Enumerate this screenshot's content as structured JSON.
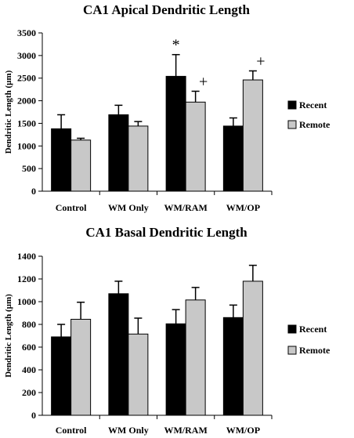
{
  "chart_data": [
    {
      "type": "bar",
      "title": "CA1 Apical Dendritic Length",
      "ylabel": "Dendritic Length (µm)",
      "xlabel": "",
      "ylim": [
        0,
        3500
      ],
      "yticks": [
        0,
        500,
        1000,
        1500,
        2000,
        2500,
        3000,
        3500
      ],
      "categories": [
        "Control",
        "WM Only",
        "WM/RAM",
        "WM/OP"
      ],
      "series": [
        {
          "name": "Recent",
          "color": "#000000",
          "values": [
            1380,
            1690,
            2540,
            1440
          ],
          "errors": [
            310,
            210,
            480,
            180
          ]
        },
        {
          "name": "Remote",
          "color": "#c8c8c8",
          "values": [
            1130,
            1440,
            1970,
            2460
          ],
          "errors": [
            40,
            100,
            240,
            200
          ]
        }
      ],
      "annotations": [
        {
          "category": "WM/RAM",
          "series": "Recent",
          "symbol": "*"
        },
        {
          "category": "WM/RAM",
          "series": "Remote",
          "symbol": "+"
        },
        {
          "category": "WM/OP",
          "series": "Remote",
          "symbol": "+"
        }
      ],
      "legend": "right",
      "grid": false
    },
    {
      "type": "bar",
      "title": "CA1 Basal Dendritic Length",
      "ylabel": "Dendritic Length (µm)",
      "xlabel": "",
      "ylim": [
        0,
        1400
      ],
      "yticks": [
        0,
        200,
        400,
        600,
        800,
        1000,
        1200,
        1400
      ],
      "categories": [
        "Control",
        "WM Only",
        "WM/RAM",
        "WM/OP"
      ],
      "series": [
        {
          "name": "Recent",
          "color": "#000000",
          "values": [
            690,
            1070,
            805,
            860
          ],
          "errors": [
            110,
            110,
            125,
            110
          ]
        },
        {
          "name": "Remote",
          "color": "#c8c8c8",
          "values": [
            845,
            715,
            1015,
            1180
          ],
          "errors": [
            150,
            140,
            110,
            140
          ]
        }
      ],
      "annotations": [],
      "legend": "right",
      "grid": false
    }
  ]
}
